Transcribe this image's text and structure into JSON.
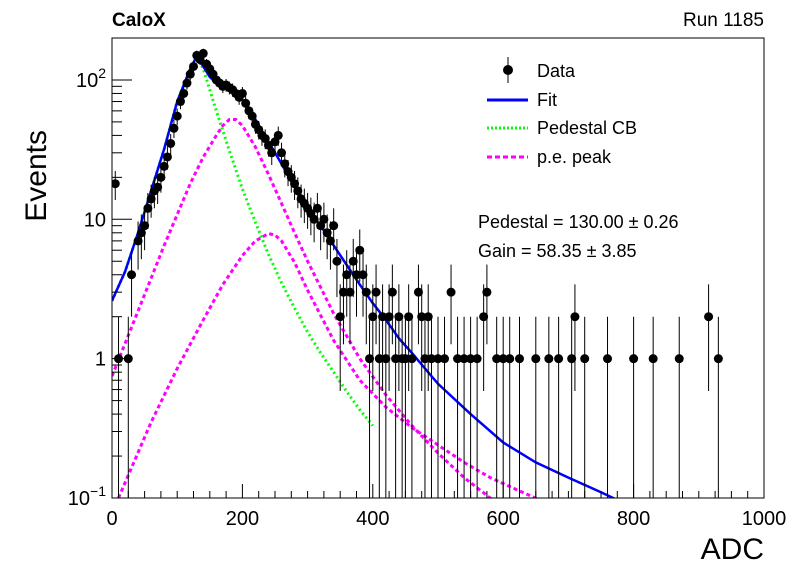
{
  "header": {
    "experiment": "CaloX",
    "run": "Run 1185"
  },
  "annotations": {
    "pedestal": "Pedestal = 130.00 ± 0.26",
    "gain": "Gain = 58.35 ± 3.85"
  },
  "colors": {
    "data": "#000000",
    "fit": "#0000ff",
    "pedestal_cb": "#00ff00",
    "pe_peak": "#ff00ff"
  },
  "chart_data": {
    "type": "scatter",
    "title": "",
    "xlabel": "ADC",
    "ylabel": "Events",
    "xlim": [
      0,
      1000
    ],
    "ylim": [
      0.1,
      200
    ],
    "y_scale": "log",
    "x_ticks": [
      0,
      200,
      400,
      600,
      800,
      1000
    ],
    "y_ticks": [
      {
        "value": 0.1,
        "base": "10",
        "exp": "−1"
      },
      {
        "value": 1,
        "text": "1"
      },
      {
        "value": 10,
        "text": "10"
      },
      {
        "value": 100,
        "base": "10",
        "exp": "2"
      }
    ],
    "grid": false,
    "legend": {
      "position": "top-right",
      "entries": [
        {
          "label": "Data",
          "style": "marker"
        },
        {
          "label": "Fit",
          "style": "solid"
        },
        {
          "label": "Pedestal CB",
          "style": "dotted"
        },
        {
          "label": "p.e. peak",
          "style": "dashed"
        }
      ]
    },
    "data_points": [
      {
        "x": 5,
        "y": 18
      },
      {
        "x": 10,
        "y": 1
      },
      {
        "x": 25,
        "y": 1
      },
      {
        "x": 30,
        "y": 4
      },
      {
        "x": 40,
        "y": 7
      },
      {
        "x": 45,
        "y": 8
      },
      {
        "x": 50,
        "y": 9
      },
      {
        "x": 55,
        "y": 12
      },
      {
        "x": 60,
        "y": 14
      },
      {
        "x": 65,
        "y": 16
      },
      {
        "x": 70,
        "y": 17
      },
      {
        "x": 75,
        "y": 20
      },
      {
        "x": 80,
        "y": 24
      },
      {
        "x": 85,
        "y": 28
      },
      {
        "x": 90,
        "y": 35
      },
      {
        "x": 95,
        "y": 45
      },
      {
        "x": 100,
        "y": 55
      },
      {
        "x": 105,
        "y": 70
      },
      {
        "x": 110,
        "y": 80
      },
      {
        "x": 115,
        "y": 95
      },
      {
        "x": 120,
        "y": 110
      },
      {
        "x": 125,
        "y": 125
      },
      {
        "x": 130,
        "y": 150
      },
      {
        "x": 135,
        "y": 140
      },
      {
        "x": 140,
        "y": 155
      },
      {
        "x": 145,
        "y": 130
      },
      {
        "x": 150,
        "y": 120
      },
      {
        "x": 155,
        "y": 110
      },
      {
        "x": 160,
        "y": 100
      },
      {
        "x": 165,
        "y": 95
      },
      {
        "x": 170,
        "y": 90
      },
      {
        "x": 175,
        "y": 92
      },
      {
        "x": 180,
        "y": 88
      },
      {
        "x": 185,
        "y": 85
      },
      {
        "x": 190,
        "y": 80
      },
      {
        "x": 195,
        "y": 75
      },
      {
        "x": 200,
        "y": 80
      },
      {
        "x": 205,
        "y": 68
      },
      {
        "x": 210,
        "y": 60
      },
      {
        "x": 215,
        "y": 55
      },
      {
        "x": 220,
        "y": 48
      },
      {
        "x": 225,
        "y": 44
      },
      {
        "x": 230,
        "y": 40
      },
      {
        "x": 235,
        "y": 38
      },
      {
        "x": 240,
        "y": 34
      },
      {
        "x": 245,
        "y": 30
      },
      {
        "x": 250,
        "y": 36
      },
      {
        "x": 255,
        "y": 40
      },
      {
        "x": 260,
        "y": 30
      },
      {
        "x": 265,
        "y": 25
      },
      {
        "x": 270,
        "y": 22
      },
      {
        "x": 275,
        "y": 20
      },
      {
        "x": 280,
        "y": 18
      },
      {
        "x": 285,
        "y": 16
      },
      {
        "x": 290,
        "y": 14
      },
      {
        "x": 295,
        "y": 13
      },
      {
        "x": 300,
        "y": 12
      },
      {
        "x": 305,
        "y": 11
      },
      {
        "x": 310,
        "y": 10
      },
      {
        "x": 315,
        "y": 12
      },
      {
        "x": 320,
        "y": 9
      },
      {
        "x": 325,
        "y": 10
      },
      {
        "x": 330,
        "y": 8
      },
      {
        "x": 335,
        "y": 7
      },
      {
        "x": 340,
        "y": 9
      },
      {
        "x": 345,
        "y": 5
      },
      {
        "x": 350,
        "y": 2
      },
      {
        "x": 355,
        "y": 3
      },
      {
        "x": 360,
        "y": 4
      },
      {
        "x": 365,
        "y": 3
      },
      {
        "x": 370,
        "y": 5
      },
      {
        "x": 375,
        "y": 4
      },
      {
        "x": 380,
        "y": 6
      },
      {
        "x": 385,
        "y": 4
      },
      {
        "x": 390,
        "y": 3
      },
      {
        "x": 395,
        "y": 1
      },
      {
        "x": 400,
        "y": 2
      },
      {
        "x": 405,
        "y": 3
      },
      {
        "x": 410,
        "y": 1
      },
      {
        "x": 415,
        "y": 2
      },
      {
        "x": 420,
        "y": 1
      },
      {
        "x": 425,
        "y": 2
      },
      {
        "x": 430,
        "y": 3
      },
      {
        "x": 435,
        "y": 1
      },
      {
        "x": 440,
        "y": 2
      },
      {
        "x": 445,
        "y": 1
      },
      {
        "x": 450,
        "y": 1
      },
      {
        "x": 455,
        "y": 2
      },
      {
        "x": 460,
        "y": 1
      },
      {
        "x": 470,
        "y": 3
      },
      {
        "x": 475,
        "y": 2
      },
      {
        "x": 480,
        "y": 1
      },
      {
        "x": 485,
        "y": 2
      },
      {
        "x": 490,
        "y": 1
      },
      {
        "x": 500,
        "y": 1
      },
      {
        "x": 510,
        "y": 1
      },
      {
        "x": 520,
        "y": 3
      },
      {
        "x": 530,
        "y": 1
      },
      {
        "x": 540,
        "y": 1
      },
      {
        "x": 550,
        "y": 1
      },
      {
        "x": 560,
        "y": 1
      },
      {
        "x": 570,
        "y": 2
      },
      {
        "x": 575,
        "y": 3
      },
      {
        "x": 590,
        "y": 1
      },
      {
        "x": 600,
        "y": 1
      },
      {
        "x": 610,
        "y": 1
      },
      {
        "x": 625,
        "y": 1
      },
      {
        "x": 650,
        "y": 1
      },
      {
        "x": 670,
        "y": 1
      },
      {
        "x": 685,
        "y": 1
      },
      {
        "x": 705,
        "y": 1
      },
      {
        "x": 710,
        "y": 2
      },
      {
        "x": 725,
        "y": 1
      },
      {
        "x": 760,
        "y": 1
      },
      {
        "x": 800,
        "y": 1
      },
      {
        "x": 830,
        "y": 1
      },
      {
        "x": 870,
        "y": 1
      },
      {
        "x": 915,
        "y": 2
      },
      {
        "x": 930,
        "y": 1
      }
    ],
    "curves": {
      "fit": {
        "x": [
          0,
          20,
          40,
          60,
          80,
          100,
          120,
          130,
          140,
          150,
          160,
          170,
          180,
          190,
          200,
          210,
          220,
          230,
          240,
          260,
          280,
          300,
          320,
          340,
          360,
          380,
          400,
          420,
          440,
          460,
          480,
          500,
          550,
          600,
          650,
          700,
          750,
          800
        ],
        "y": [
          2.6,
          4.2,
          8,
          16,
          32,
          70,
          120,
          148,
          125,
          105,
          95,
          90,
          85,
          78,
          72,
          62,
          52,
          43,
          36,
          25,
          17,
          12,
          9,
          6.5,
          4.7,
          3.4,
          2.5,
          1.9,
          1.4,
          1.1,
          0.85,
          0.66,
          0.4,
          0.25,
          0.18,
          0.14,
          0.11,
          0.085
        ]
      },
      "pedestal_cb": {
        "x": [
          0,
          20,
          40,
          60,
          80,
          100,
          120,
          130,
          140,
          150,
          160,
          180,
          200,
          220,
          240,
          260,
          280,
          300,
          320,
          340,
          360,
          380,
          400
        ],
        "y": [
          2.6,
          4.2,
          8,
          16,
          32,
          70,
          120,
          148,
          120,
          85,
          60,
          31,
          16.5,
          9.5,
          5.6,
          3.5,
          2.3,
          1.55,
          1.1,
          0.8,
          0.58,
          0.43,
          0.33
        ]
      },
      "pe_peak_1": {
        "x": [
          0,
          40,
          80,
          120,
          140,
          160,
          170,
          180,
          190,
          200,
          220,
          240,
          260,
          280,
          300,
          340,
          380,
          420,
          460,
          500,
          540,
          580,
          600
        ],
        "y": [
          0.75,
          2.2,
          6.5,
          18,
          28,
          40,
          47,
          52,
          52,
          47,
          33,
          21,
          13,
          8,
          5,
          2.1,
          1.0,
          0.55,
          0.33,
          0.21,
          0.14,
          0.1,
          0.088
        ]
      },
      "pe_peak_2": {
        "x": [
          10,
          60,
          100,
          140,
          170,
          200,
          220,
          240,
          250,
          260,
          280,
          300,
          340,
          380,
          420,
          460,
          500,
          540,
          580,
          620,
          660,
          700
        ],
        "y": [
          0.1,
          0.35,
          0.85,
          1.9,
          3.4,
          5.5,
          7,
          7.9,
          7.7,
          7,
          4.9,
          3.1,
          1.35,
          0.7,
          0.45,
          0.32,
          0.24,
          0.18,
          0.14,
          0.115,
          0.095,
          0.08
        ]
      }
    }
  }
}
